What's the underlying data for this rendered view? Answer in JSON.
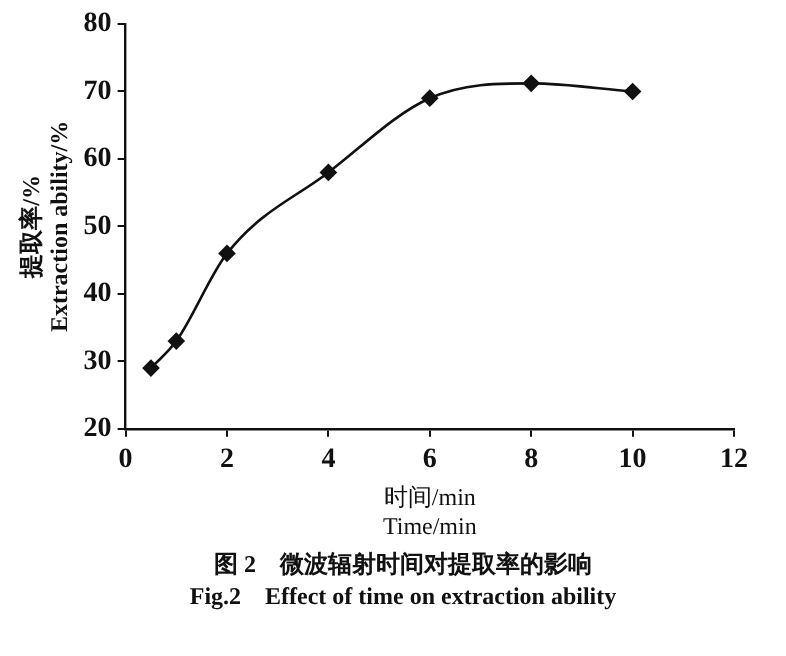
{
  "chart_data": {
    "type": "line",
    "xlabel": "时间/min\nTime/min",
    "ylabel": "提取率/%\nExtraction ability/%",
    "x": [
      0.5,
      1,
      2,
      4,
      6,
      8,
      10
    ],
    "series": [
      {
        "color": "#111111",
        "values": [
          29,
          33,
          46,
          58,
          69,
          71.2,
          70
        ]
      }
    ],
    "xlim": [
      0,
      12
    ],
    "xticks": [
      0,
      2,
      4,
      6,
      8,
      10,
      12
    ],
    "ylim": [
      20,
      80
    ],
    "yticks": [
      20,
      30,
      40,
      50,
      60,
      70,
      80
    ],
    "grid": false,
    "legend": false,
    "marker": "diamond",
    "line_style": "solid",
    "annotations": [
      "图 2　微波辐射时间对提取率的影响",
      "Fig.2　Effect of time on extraction ability"
    ]
  }
}
